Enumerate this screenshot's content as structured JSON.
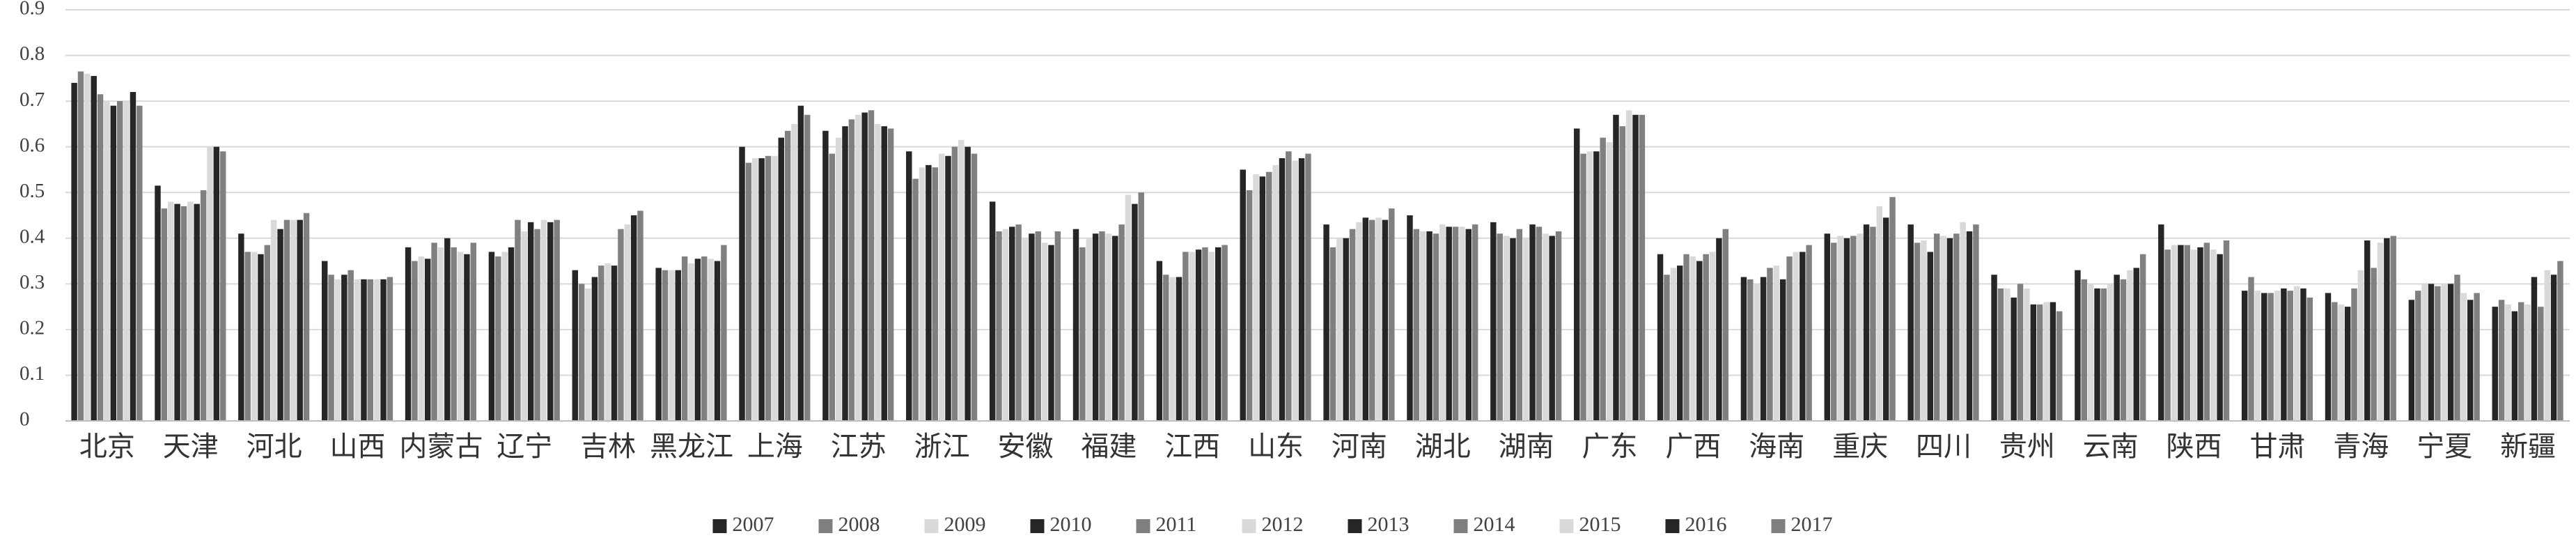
{
  "chart_data": {
    "type": "bar",
    "categories": [
      "北京",
      "天津",
      "河北",
      "山西",
      "内蒙古",
      "辽宁",
      "吉林",
      "黑龙江",
      "上海",
      "江苏",
      "浙江",
      "安徽",
      "福建",
      "江西",
      "山东",
      "河南",
      "湖北",
      "湖南",
      "广东",
      "广西",
      "海南",
      "重庆",
      "四川",
      "贵州",
      "云南",
      "陕西",
      "甘肃",
      "青海",
      "宁夏",
      "新疆"
    ],
    "ylim": [
      0,
      0.9
    ],
    "yticks": [
      0,
      0.1,
      0.2,
      0.3,
      0.4,
      0.5,
      0.6,
      0.7,
      0.8,
      0.9
    ],
    "grid": true,
    "legend": "bottom",
    "series": [
      {
        "name": "2007",
        "color": "#262626",
        "values": [
          0.74,
          0.515,
          0.41,
          0.35,
          0.38,
          0.37,
          0.33,
          0.335,
          0.6,
          0.635,
          0.59,
          0.48,
          0.42,
          0.35,
          0.55,
          0.43,
          0.45,
          0.435,
          0.64,
          0.365,
          0.315,
          0.41,
          0.43,
          0.32,
          0.33,
          0.43,
          0.285,
          0.28,
          0.265,
          0.25
        ]
      },
      {
        "name": "2008",
        "color": "#808080",
        "values": [
          0.765,
          0.465,
          0.37,
          0.32,
          0.35,
          0.36,
          0.3,
          0.33,
          0.565,
          0.585,
          0.53,
          0.415,
          0.38,
          0.32,
          0.505,
          0.38,
          0.42,
          0.41,
          0.585,
          0.32,
          0.31,
          0.39,
          0.39,
          0.29,
          0.31,
          0.375,
          0.315,
          0.26,
          0.285,
          0.265
        ]
      },
      {
        "name": "2009",
        "color": "#d9d9d9",
        "values": [
          0.76,
          0.48,
          0.37,
          0.31,
          0.36,
          0.37,
          0.29,
          0.33,
          0.575,
          0.62,
          0.555,
          0.42,
          0.4,
          0.315,
          0.54,
          0.4,
          0.415,
          0.405,
          0.59,
          0.335,
          0.3,
          0.405,
          0.395,
          0.29,
          0.3,
          0.385,
          0.285,
          0.255,
          0.3,
          0.255
        ]
      },
      {
        "name": "2010",
        "color": "#262626",
        "values": [
          0.755,
          0.475,
          0.365,
          0.32,
          0.355,
          0.38,
          0.315,
          0.33,
          0.575,
          0.645,
          0.56,
          0.425,
          0.41,
          0.315,
          0.535,
          0.4,
          0.415,
          0.4,
          0.59,
          0.34,
          0.315,
          0.4,
          0.37,
          0.27,
          0.29,
          0.385,
          0.28,
          0.25,
          0.3,
          0.24
        ]
      },
      {
        "name": "2011",
        "color": "#808080",
        "values": [
          0.715,
          0.47,
          0.385,
          0.33,
          0.39,
          0.44,
          0.34,
          0.36,
          0.58,
          0.66,
          0.555,
          0.43,
          0.415,
          0.37,
          0.545,
          0.42,
          0.41,
          0.42,
          0.62,
          0.365,
          0.335,
          0.405,
          0.41,
          0.3,
          0.29,
          0.385,
          0.28,
          0.29,
          0.295,
          0.26
        ]
      },
      {
        "name": "2012",
        "color": "#d9d9d9",
        "values": [
          0.7,
          0.48,
          0.44,
          0.31,
          0.38,
          0.415,
          0.345,
          0.345,
          0.58,
          0.67,
          0.585,
          0.4,
          0.41,
          0.37,
          0.56,
          0.435,
          0.43,
          0.4,
          0.61,
          0.36,
          0.34,
          0.41,
          0.405,
          0.29,
          0.3,
          0.375,
          0.285,
          0.33,
          0.3,
          0.255
        ]
      },
      {
        "name": "2013",
        "color": "#262626",
        "values": [
          0.69,
          0.475,
          0.42,
          0.31,
          0.4,
          0.435,
          0.34,
          0.355,
          0.62,
          0.675,
          0.58,
          0.41,
          0.405,
          0.375,
          0.575,
          0.445,
          0.425,
          0.43,
          0.67,
          0.35,
          0.31,
          0.43,
          0.4,
          0.255,
          0.32,
          0.38,
          0.29,
          0.395,
          0.3,
          0.315
        ]
      },
      {
        "name": "2014",
        "color": "#808080",
        "values": [
          0.7,
          0.505,
          0.44,
          0.31,
          0.38,
          0.42,
          0.42,
          0.36,
          0.635,
          0.68,
          0.6,
          0.415,
          0.43,
          0.38,
          0.59,
          0.44,
          0.425,
          0.425,
          0.645,
          0.365,
          0.36,
          0.425,
          0.41,
          0.255,
          0.31,
          0.39,
          0.285,
          0.335,
          0.32,
          0.25
        ]
      },
      {
        "name": "2015",
        "color": "#d9d9d9",
        "values": [
          0.7,
          0.6,
          0.44,
          0.31,
          0.37,
          0.44,
          0.43,
          0.355,
          0.65,
          0.65,
          0.615,
          0.39,
          0.495,
          0.37,
          0.57,
          0.445,
          0.425,
          0.41,
          0.68,
          0.37,
          0.37,
          0.47,
          0.435,
          0.26,
          0.33,
          0.375,
          0.295,
          0.39,
          0.28,
          0.33
        ]
      },
      {
        "name": "2016",
        "color": "#262626",
        "values": [
          0.72,
          0.6,
          0.44,
          0.31,
          0.365,
          0.435,
          0.45,
          0.35,
          0.69,
          0.645,
          0.6,
          0.385,
          0.475,
          0.38,
          0.575,
          0.44,
          0.42,
          0.405,
          0.67,
          0.4,
          0.37,
          0.445,
          0.415,
          0.26,
          0.335,
          0.365,
          0.29,
          0.4,
          0.265,
          0.32
        ]
      },
      {
        "name": "2017",
        "color": "#808080",
        "values": [
          0.69,
          0.59,
          0.455,
          0.315,
          0.39,
          0.44,
          0.46,
          0.385,
          0.67,
          0.64,
          0.585,
          0.415,
          0.5,
          0.385,
          0.585,
          0.465,
          0.43,
          0.415,
          0.67,
          0.42,
          0.385,
          0.49,
          0.43,
          0.24,
          0.365,
          0.395,
          0.27,
          0.405,
          0.28,
          0.35
        ]
      }
    ]
  }
}
